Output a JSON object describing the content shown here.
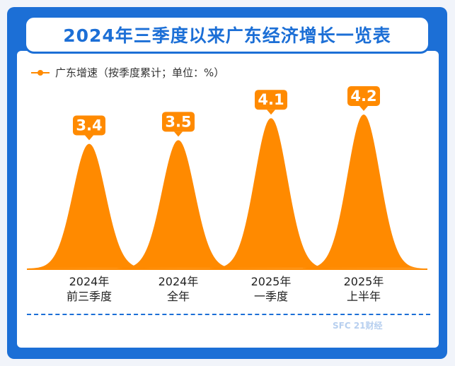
{
  "title": "2024年三季度以来广东经济增长一览表",
  "legend": "广东增速（按季度累计；单位：%）",
  "chart_data": {
    "type": "area",
    "title": "2024年三季度以来广东经济增长一览表",
    "series": [
      {
        "name": "广东增速",
        "values": [
          3.4,
          3.5,
          4.1,
          4.2
        ]
      }
    ],
    "categories": [
      [
        "2024年",
        "前三季度"
      ],
      [
        "2024年",
        "全年"
      ],
      [
        "2025年",
        "一季度"
      ],
      [
        "2025年",
        "上半年"
      ]
    ],
    "unit": "%",
    "ylim": [
      0,
      4.2
    ],
    "colors": {
      "fill": "#ff8a00",
      "label_bg": "#ff8a00",
      "label_text": "#ffffff"
    }
  },
  "watermark": "SFC 21财经"
}
